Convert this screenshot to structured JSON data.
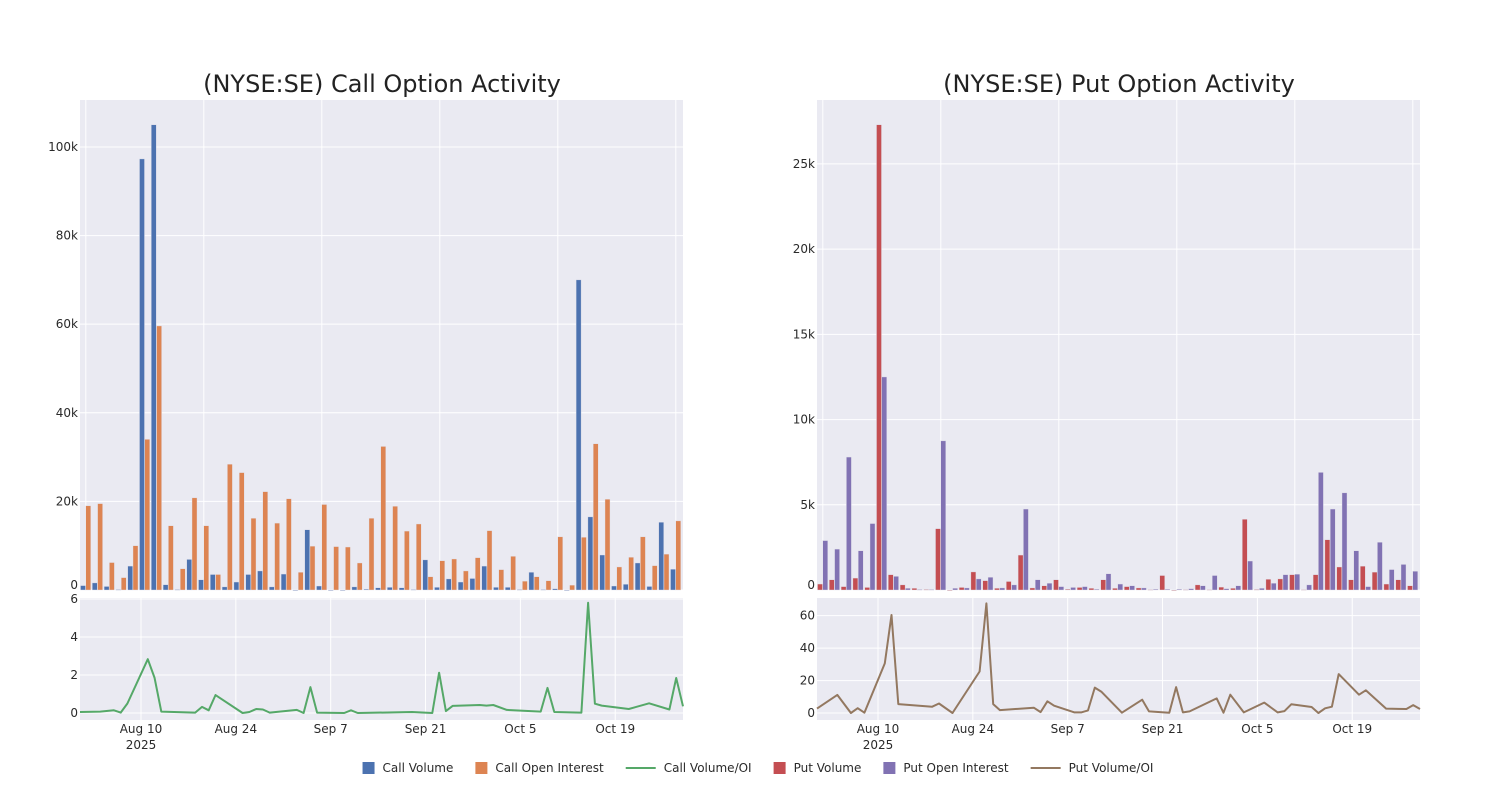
{
  "legend": [
    {
      "label": "Call Volume",
      "kind": "bar",
      "color": "#4c72b0"
    },
    {
      "label": "Call Open Interest",
      "kind": "bar",
      "color": "#dd8452"
    },
    {
      "label": "Call Volume/OI",
      "kind": "line",
      "color": "#55a868"
    },
    {
      "label": "Put Volume",
      "kind": "bar",
      "color": "#c44e52"
    },
    {
      "label": "Put Open Interest",
      "kind": "bar",
      "color": "#8172b3"
    },
    {
      "label": "Put Volume/OI",
      "kind": "line",
      "color": "#937860"
    }
  ],
  "chart_data": [
    {
      "type": "bar",
      "title": "(NYSE:SE) Call Option Activity",
      "bars": {
        "ylim": [
          0,
          110600
        ],
        "yticks": [
          0,
          20000,
          40000,
          60000,
          80000,
          100000
        ],
        "ytick_labels": [
          "0",
          "20k",
          "40k",
          "60k",
          "80k",
          "100k"
        ],
        "series": [
          {
            "name": "Call Volume",
            "color": "#4c72b0",
            "values": [
              1000,
              1600,
              800,
              100,
              5400,
              97300,
              105000,
              1200,
              100,
              6900,
              2300,
              3500,
              700,
              1800,
              3500,
              4300,
              700,
              3600,
              0,
              13600,
              900,
              0,
              0,
              700,
              200,
              500,
              600,
              500,
              100,
              6800,
              600,
              2500,
              1800,
              2600,
              5400,
              600,
              600,
              100,
              4000,
              100,
              300,
              0,
              70000,
              16500,
              7900,
              900,
              1300,
              6100,
              800,
              15300,
              4700
            ]
          },
          {
            "name": "Call Open Interest",
            "color": "#dd8452",
            "values": [
              19000,
              19500,
              6200,
              2800,
              10000,
              34000,
              59600,
              14500,
              4800,
              20800,
              14500,
              3500,
              28400,
              26500,
              16200,
              22200,
              15100,
              20600,
              4000,
              9900,
              19300,
              9800,
              9700,
              6100,
              16200,
              32400,
              18900,
              13300,
              14900,
              3000,
              6600,
              7000,
              4300,
              7300,
              13400,
              4600,
              7600,
              2000,
              3000,
              2100,
              12000,
              1100,
              11900,
              33000,
              20500,
              5200,
              7400,
              12000,
              5500,
              8100,
              15600
            ]
          }
        ]
      },
      "ratio": {
        "type": "line",
        "name": "Call Volume/OI",
        "color": "#55a868",
        "ylim": [
          -0.37,
          6.05
        ],
        "yticks": [
          0,
          2,
          4,
          6
        ],
        "ytick_labels": [
          "0",
          "2",
          "4",
          "6"
        ],
        "xlim": [
          "2025-08-01",
          "2025-10-29"
        ],
        "xticks": [
          "2025-08-10",
          "2025-08-24",
          "2025-09-07",
          "2025-09-21",
          "2025-10-05",
          "2025-10-19"
        ],
        "xtick_labels": [
          "Aug 10",
          "Aug 24",
          "Sep 7",
          "Sep 21",
          "Oct 5",
          "Oct 19"
        ],
        "xtick_year": "2025",
        "points": [
          [
            "2025-08-01",
            0.05
          ],
          [
            "2025-08-04",
            0.07
          ],
          [
            "2025-08-06",
            0.14
          ],
          [
            "2025-08-07",
            0.02
          ],
          [
            "2025-08-08",
            0.5
          ],
          [
            "2025-08-11",
            2.83
          ],
          [
            "2025-08-12",
            1.86
          ],
          [
            "2025-08-13",
            0.07
          ],
          [
            "2025-08-18",
            0.02
          ],
          [
            "2025-08-19",
            0.32
          ],
          [
            "2025-08-20",
            0.14
          ],
          [
            "2025-08-21",
            0.94
          ],
          [
            "2025-08-25",
            0
          ],
          [
            "2025-08-26",
            0.05
          ],
          [
            "2025-08-27",
            0.21
          ],
          [
            "2025-08-28",
            0.18
          ],
          [
            "2025-08-29",
            0.02
          ],
          [
            "2025-09-02",
            0.16
          ],
          [
            "2025-09-03",
            0
          ],
          [
            "2025-09-04",
            1.36
          ],
          [
            "2025-09-05",
            0.02
          ],
          [
            "2025-09-09",
            0
          ],
          [
            "2025-09-10",
            0.14
          ],
          [
            "2025-09-11",
            0
          ],
          [
            "2025-09-19",
            0.05
          ],
          [
            "2025-09-22",
            0
          ],
          [
            "2025-09-23",
            2.12
          ],
          [
            "2025-09-24",
            0.1
          ],
          [
            "2025-09-25",
            0.37
          ],
          [
            "2025-09-29",
            0.42
          ],
          [
            "2025-09-30",
            0.39
          ],
          [
            "2025-10-01",
            0.42
          ],
          [
            "2025-10-03",
            0.16
          ],
          [
            "2025-10-08",
            0.07
          ],
          [
            "2025-10-09",
            1.32
          ],
          [
            "2025-10-10",
            0.05
          ],
          [
            "2025-10-14",
            0.02
          ],
          [
            "2025-10-15",
            5.8
          ],
          [
            "2025-10-16",
            0.49
          ],
          [
            "2025-10-17",
            0.39
          ],
          [
            "2025-10-21",
            0.21
          ],
          [
            "2025-10-24",
            0.51
          ],
          [
            "2025-10-27",
            0.18
          ],
          [
            "2025-10-28",
            1.84
          ],
          [
            "2025-10-29",
            0.35
          ]
        ]
      },
      "grid": true
    },
    {
      "type": "bar",
      "title": "(NYSE:SE) Put Option Activity",
      "bars": {
        "ylim": [
          0,
          28750
        ],
        "yticks": [
          0,
          5000,
          10000,
          15000,
          20000,
          25000
        ],
        "ytick_labels": [
          "0",
          "5k",
          "10k",
          "15k",
          "20k",
          "25k"
        ],
        "series": [
          {
            "name": "Put Volume",
            "color": "#c44e52",
            "values": [
              350,
              600,
              200,
              700,
              150,
              27300,
              900,
              300,
              100,
              30,
              3600,
              0,
              150,
              1060,
              550,
              100,
              500,
              2050,
              120,
              250,
              600,
              50,
              150,
              100,
              600,
              100,
              200,
              120,
              20,
              850,
              0,
              20,
              300,
              20,
              170,
              100,
              4150,
              30,
              630,
              650,
              900,
              20,
              900,
              2950,
              1350,
              600,
              1400,
              1050,
              350,
              600,
              250
            ]
          },
          {
            "name": "Put Open Interest",
            "color": "#8172b3",
            "values": [
              2900,
              2400,
              7800,
              2300,
              3900,
              12500,
              800,
              100,
              30,
              30,
              8750,
              100,
              120,
              650,
              750,
              120,
              300,
              4750,
              600,
              400,
              200,
              150,
              200,
              50,
              950,
              350,
              250,
              120,
              50,
              50,
              50,
              80,
              250,
              850,
              80,
              250,
              1700,
              100,
              400,
              900,
              930,
              300,
              6900,
              4750,
              5700,
              2300,
              200,
              2800,
              1200,
              1500,
              1100
            ]
          }
        ]
      },
      "ratio": {
        "type": "line",
        "name": "Put Volume/OI",
        "color": "#937860",
        "ylim": [
          -4.3,
          70.9
        ],
        "yticks": [
          0,
          20,
          40,
          60
        ],
        "ytick_labels": [
          "0",
          "20",
          "40",
          "60"
        ],
        "xlim": [
          "2025-08-01",
          "2025-10-29"
        ],
        "xticks": [
          "2025-08-10",
          "2025-08-24",
          "2025-09-07",
          "2025-09-21",
          "2025-10-05",
          "2025-10-19"
        ],
        "xtick_labels": [
          "Aug 10",
          "Aug 24",
          "Sep 7",
          "Sep 21",
          "Oct 5",
          "Oct 19"
        ],
        "xtick_year": "2025",
        "points": [
          [
            "2025-08-01",
            2.7
          ],
          [
            "2025-08-04",
            11.2
          ],
          [
            "2025-08-06",
            0
          ],
          [
            "2025-08-07",
            3
          ],
          [
            "2025-08-08",
            0.2
          ],
          [
            "2025-08-11",
            30.6
          ],
          [
            "2025-08-12",
            60.4
          ],
          [
            "2025-08-13",
            5.5
          ],
          [
            "2025-08-18",
            3.9
          ],
          [
            "2025-08-19",
            5.9
          ],
          [
            "2025-08-21",
            0
          ],
          [
            "2025-08-25",
            25.6
          ],
          [
            "2025-08-26",
            67.6
          ],
          [
            "2025-08-27",
            5.5
          ],
          [
            "2025-08-28",
            1.8
          ],
          [
            "2025-09-02",
            3.3
          ],
          [
            "2025-09-03",
            0.6
          ],
          [
            "2025-09-04",
            7.2
          ],
          [
            "2025-09-05",
            4.5
          ],
          [
            "2025-09-08",
            0.4
          ],
          [
            "2025-09-09",
            0.4
          ],
          [
            "2025-09-10",
            1.6
          ],
          [
            "2025-09-11",
            15.7
          ],
          [
            "2025-09-12",
            13
          ],
          [
            "2025-09-15",
            0.2
          ],
          [
            "2025-09-18",
            8.2
          ],
          [
            "2025-09-19",
            1
          ],
          [
            "2025-09-22",
            0.2
          ],
          [
            "2025-09-23",
            16
          ],
          [
            "2025-09-24",
            0.4
          ],
          [
            "2025-09-25",
            1
          ],
          [
            "2025-09-29",
            9
          ],
          [
            "2025-09-30",
            0.2
          ],
          [
            "2025-10-01",
            11.3
          ],
          [
            "2025-10-03",
            0.4
          ],
          [
            "2025-10-06",
            6.4
          ],
          [
            "2025-10-08",
            0.4
          ],
          [
            "2025-10-09",
            1.2
          ],
          [
            "2025-10-10",
            5.4
          ],
          [
            "2025-10-13",
            3.7
          ],
          [
            "2025-10-14",
            0
          ],
          [
            "2025-10-15",
            2.9
          ],
          [
            "2025-10-16",
            3.9
          ],
          [
            "2025-10-17",
            24
          ],
          [
            "2025-10-20",
            11.3
          ],
          [
            "2025-10-21",
            14
          ],
          [
            "2025-10-24",
            2.7
          ],
          [
            "2025-10-27",
            2.5
          ],
          [
            "2025-10-28",
            4.9
          ],
          [
            "2025-10-29",
            2.5
          ]
        ]
      },
      "grid": true
    }
  ]
}
